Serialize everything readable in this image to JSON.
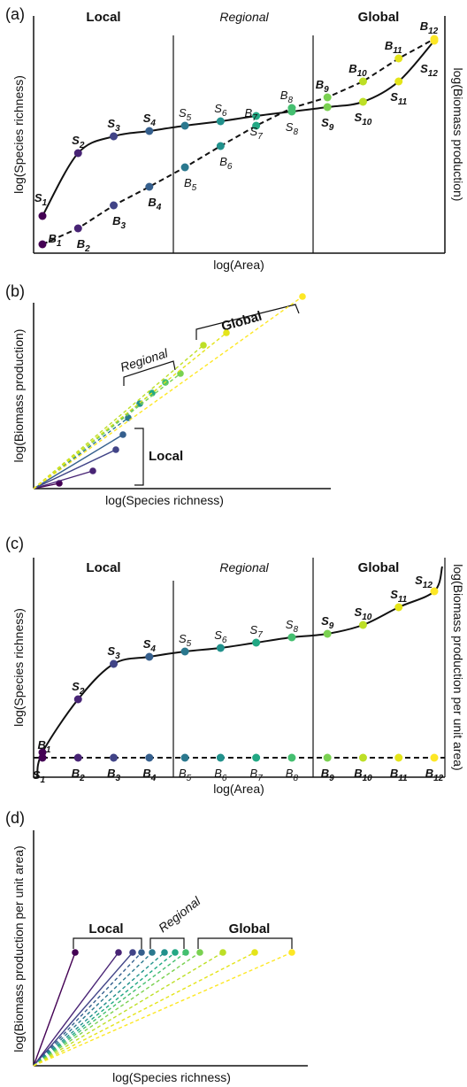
{
  "chart_data": [
    {
      "panel": "(a)",
      "type": "line",
      "xlabel": "log(Area)",
      "ylabel": "log(Species richness)",
      "ylabel_right": "log(Biomass production)",
      "regions": [
        "Local",
        "Regional",
        "Global"
      ],
      "scale_points": 12,
      "series": [
        {
          "labels": [
            "S1",
            "S2",
            "S3",
            "S4",
            "S5",
            "S6",
            "S7",
            "S8",
            "S9",
            "S10",
            "S11",
            "S12"
          ]
        },
        {
          "labels": [
            "B1",
            "B2",
            "B3",
            "B4",
            "B5",
            "B6",
            "B7",
            "B8",
            "B9",
            "B10",
            "B11",
            "B12"
          ]
        }
      ]
    },
    {
      "panel": "(b)",
      "type": "scatter",
      "xlabel": "log(Species richness)",
      "ylabel": "log(Biomass production)",
      "groups": [
        "Local",
        "Regional",
        "Global"
      ]
    },
    {
      "panel": "(c)",
      "type": "line",
      "xlabel": "log(Area)",
      "ylabel": "log(Species richness)",
      "ylabel_right": "log(Biomass production per unit area)",
      "regions": [
        "Local",
        "Regional",
        "Global"
      ],
      "scale_points": 12,
      "series": [
        {
          "labels": [
            "S1",
            "S2",
            "S3",
            "S4",
            "S5",
            "S6",
            "S7",
            "S8",
            "S9",
            "S10",
            "S11",
            "S12"
          ]
        },
        {
          "labels": [
            "B1",
            "B2",
            "B3",
            "B4",
            "B5",
            "B6",
            "B7",
            "B8",
            "B9",
            "B10",
            "B11",
            "B12"
          ]
        }
      ]
    },
    {
      "panel": "(d)",
      "type": "scatter",
      "xlabel": "log(Species richness)",
      "ylabel": "log(Biomass production per unit area)",
      "groups": [
        "Local",
        "Regional",
        "Global"
      ]
    }
  ],
  "colors": [
    "#440154",
    "#482475",
    "#414487",
    "#355f8d",
    "#2a788e",
    "#21918c",
    "#22a884",
    "#44bf70",
    "#7ad151",
    "#bddf26",
    "#e4e419",
    "#fde725"
  ]
}
